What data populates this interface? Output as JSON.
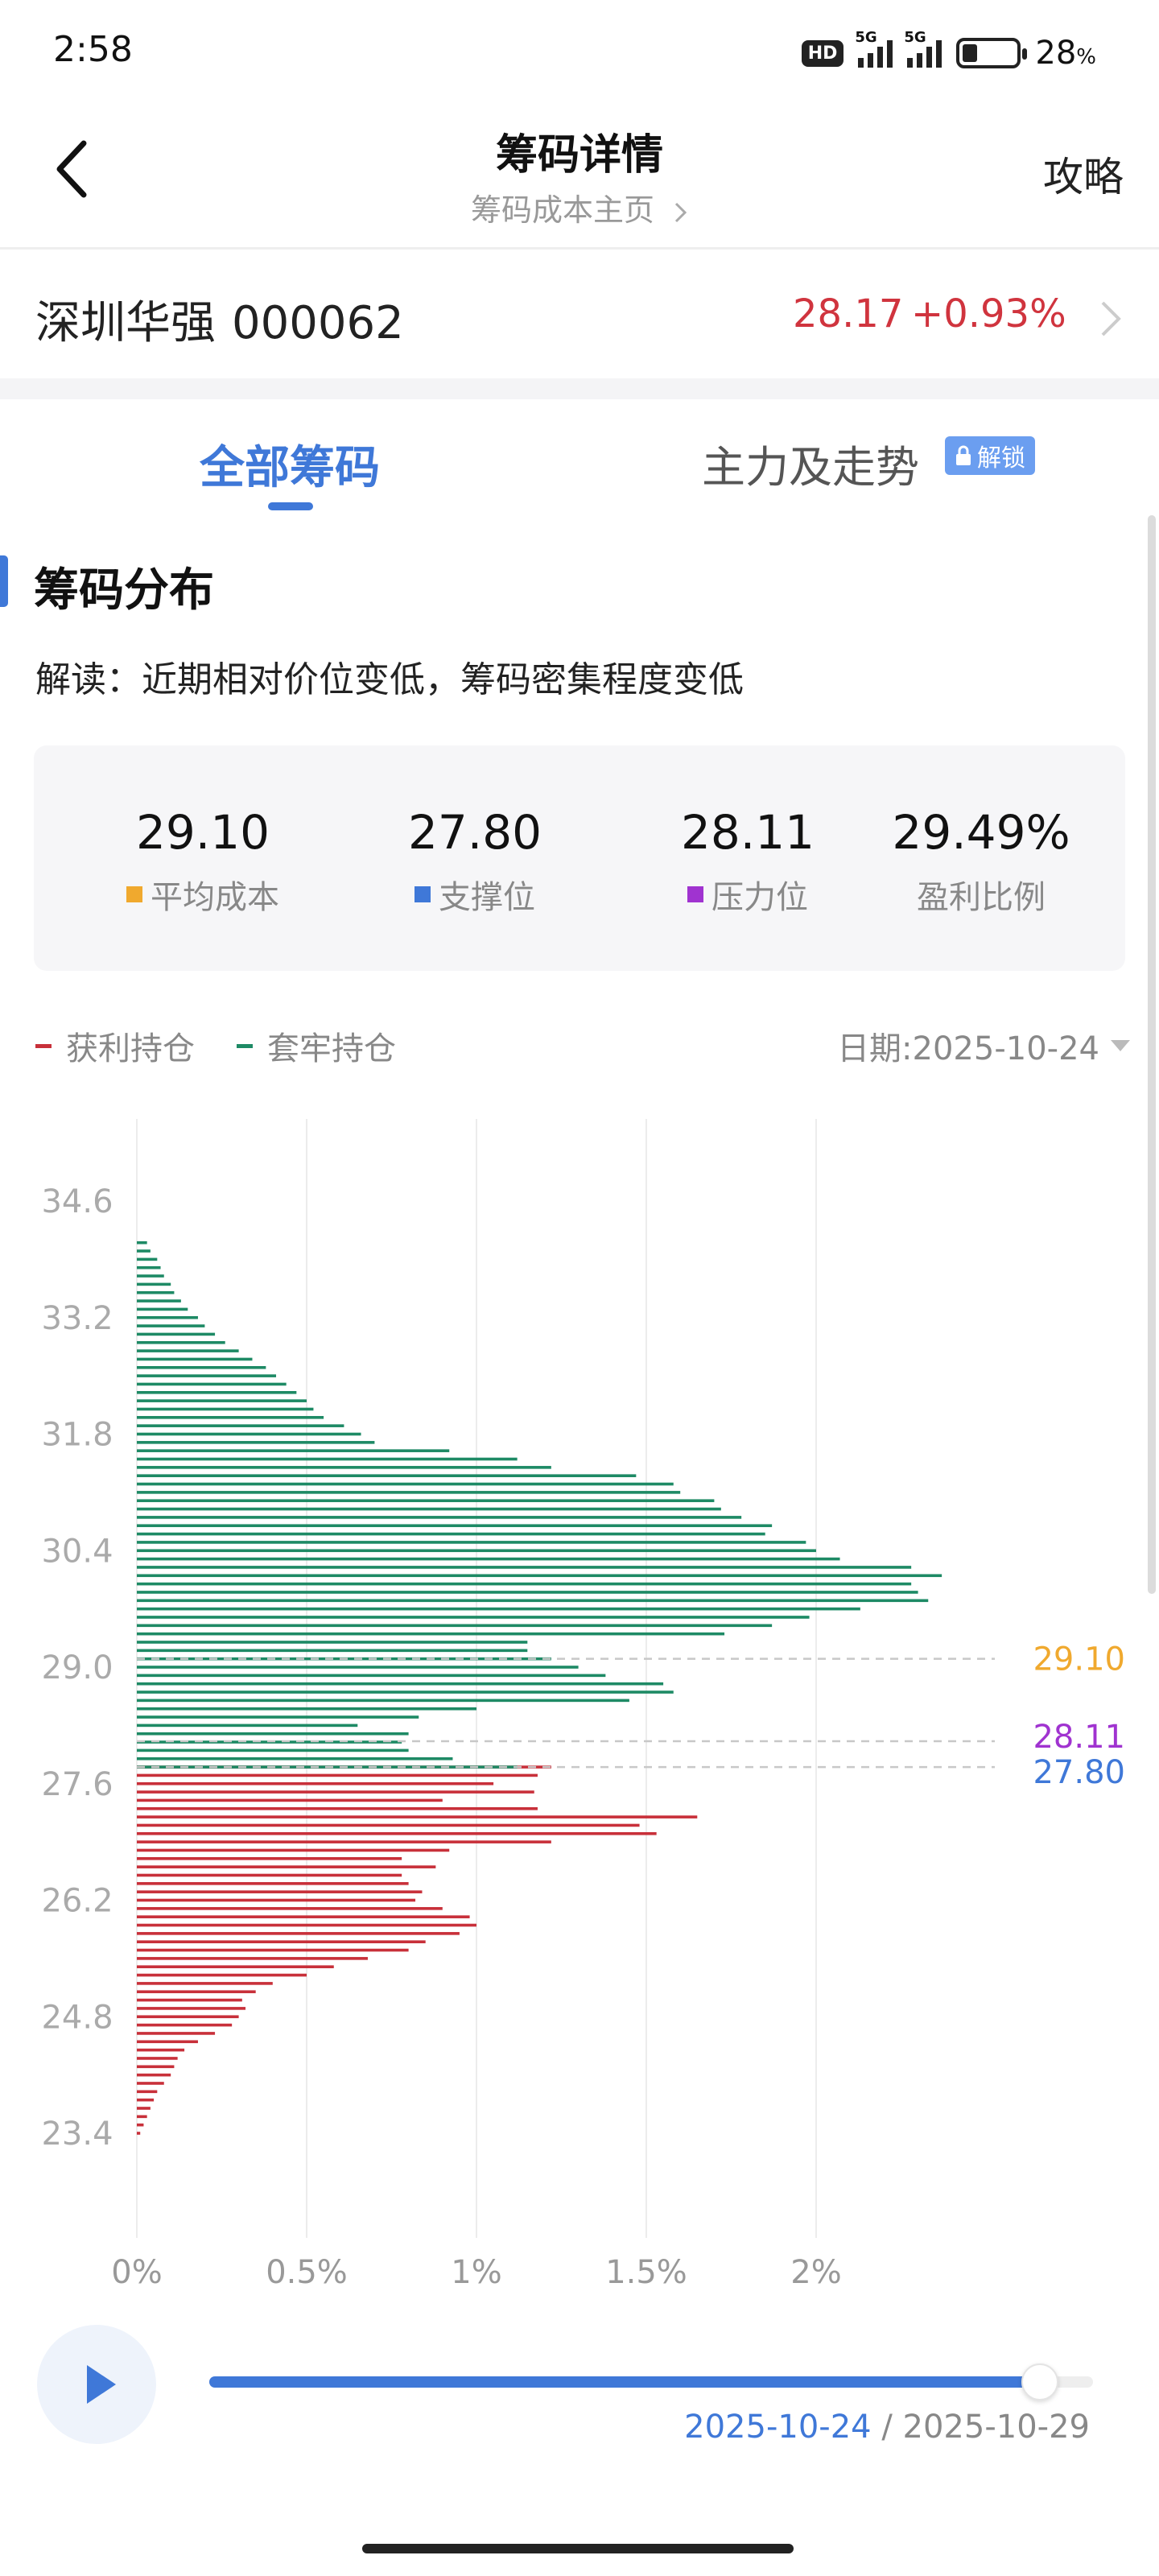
{
  "status_bar": {
    "time": "2:58",
    "hd": "HD",
    "net1": "5G",
    "net2": "5G",
    "battery_pct": "28",
    "battery_unit": "%",
    "battery_level": 0.28
  },
  "nav": {
    "title": "筹码详情",
    "subtitle": "筹码成本主页",
    "right": "攻略"
  },
  "stock": {
    "name": "深圳华强",
    "code": "000062",
    "price": "28.17",
    "change": "+0.93%"
  },
  "tabs": {
    "active": "全部筹码",
    "second": "主力及走势",
    "lock_label": "解锁"
  },
  "section": {
    "title": "筹码分布",
    "interpretation": "解读：近期相对价位变低，筹码密集程度变低"
  },
  "stats": [
    {
      "value": "29.10",
      "label": "平均成本",
      "color": "#f0a92e"
    },
    {
      "value": "27.80",
      "label": "支撑位",
      "color": "#3f78d8"
    },
    {
      "value": "28.11",
      "label": "压力位",
      "color": "#a033d0"
    },
    {
      "value": "29.49%",
      "label": "盈利比例",
      "color": ""
    }
  ],
  "legend": {
    "profit": "获利持仓",
    "trapped": "套牢持仓",
    "date_label": "日期:2025-10-24"
  },
  "colors": {
    "profit": "#c8303a",
    "trapped": "#1e8a65",
    "avg": "#f0a92e",
    "support": "#3f78d8",
    "pressure": "#a033d0",
    "accent": "#3f78d8"
  },
  "chart_data": {
    "type": "bar",
    "orientation": "horizontal",
    "x_ticks": [
      "0%",
      "0.5%",
      "1%",
      "1.5%",
      "2%"
    ],
    "y_ticks": [
      "34.6",
      "33.2",
      "31.8",
      "30.4",
      "29.0",
      "27.6",
      "26.2",
      "24.8",
      "23.4"
    ],
    "xlim": [
      0,
      2.4
    ],
    "ylim": [
      23.0,
      35.2
    ],
    "price_step": 0.1,
    "split_price": 27.8,
    "series": [
      {
        "name": "获利持仓",
        "prices": [
          23.4,
          23.5,
          23.6,
          23.7,
          23.8,
          23.9,
          24.0,
          24.1,
          24.2,
          24.3,
          24.4,
          24.5,
          24.6,
          24.7,
          24.8,
          24.9,
          25.0,
          25.1,
          25.2,
          25.3,
          25.4,
          25.5,
          25.6,
          25.7,
          25.8,
          25.9,
          26.0,
          26.1,
          26.2,
          26.3,
          26.4,
          26.5,
          26.6,
          26.7,
          26.8,
          26.9,
          27.0,
          27.1,
          27.2,
          27.3,
          27.4,
          27.5,
          27.6,
          27.7,
          27.8
        ],
        "values": [
          0.01,
          0.02,
          0.03,
          0.04,
          0.05,
          0.06,
          0.08,
          0.1,
          0.11,
          0.12,
          0.14,
          0.18,
          0.23,
          0.28,
          0.3,
          0.32,
          0.31,
          0.35,
          0.4,
          0.5,
          0.58,
          0.68,
          0.8,
          0.85,
          0.95,
          1.0,
          0.98,
          0.9,
          0.82,
          0.84,
          0.8,
          0.78,
          0.88,
          0.78,
          0.92,
          1.22,
          1.53,
          1.48,
          1.65,
          1.18,
          0.9,
          1.17,
          1.05,
          1.18,
          1.22
        ]
      },
      {
        "name": "套牢持仓",
        "prices": [
          27.8,
          27.9,
          28.0,
          28.1,
          28.2,
          28.3,
          28.4,
          28.5,
          28.6,
          28.7,
          28.8,
          28.9,
          29.0,
          29.1,
          29.2,
          29.3,
          29.4,
          29.5,
          29.6,
          29.7,
          29.8,
          29.9,
          30.0,
          30.1,
          30.2,
          30.3,
          30.4,
          30.5,
          30.6,
          30.7,
          30.8,
          30.9,
          31.0,
          31.1,
          31.2,
          31.3,
          31.4,
          31.5,
          31.6,
          31.7,
          31.8,
          31.9,
          32.0,
          32.1,
          32.2,
          32.3,
          32.4,
          32.5,
          32.6,
          32.7,
          32.8,
          32.9,
          33.0,
          33.1,
          33.2,
          33.3,
          33.4,
          33.5,
          33.6,
          33.7,
          33.8,
          33.9,
          34.0,
          34.1
        ],
        "values": [
          1.12,
          0.93,
          0.8,
          0.78,
          0.8,
          0.65,
          0.83,
          1.0,
          1.45,
          1.58,
          1.55,
          1.38,
          1.3,
          1.22,
          1.15,
          1.15,
          1.73,
          1.87,
          1.98,
          2.13,
          2.33,
          2.3,
          2.28,
          2.37,
          2.28,
          2.07,
          2.0,
          1.97,
          1.85,
          1.87,
          1.78,
          1.72,
          1.7,
          1.6,
          1.58,
          1.47,
          1.22,
          1.12,
          0.92,
          0.7,
          0.66,
          0.61,
          0.55,
          0.52,
          0.5,
          0.47,
          0.44,
          0.41,
          0.38,
          0.34,
          0.3,
          0.26,
          0.23,
          0.2,
          0.18,
          0.15,
          0.13,
          0.11,
          0.1,
          0.08,
          0.07,
          0.06,
          0.04,
          0.03
        ]
      }
    ],
    "reference_lines": [
      {
        "label": "29.10",
        "price": 29.1,
        "color": "#f0a92e"
      },
      {
        "label": "28.11",
        "price": 28.11,
        "color": "#a033d0"
      },
      {
        "label": "27.80",
        "price": 27.8,
        "color": "#3f78d8"
      }
    ],
    "grid": true,
    "legend": "top-left"
  },
  "player": {
    "progress": 0.94,
    "current_date": "2025-10-24",
    "separator": " / ",
    "end_date": "2025-10-29"
  }
}
